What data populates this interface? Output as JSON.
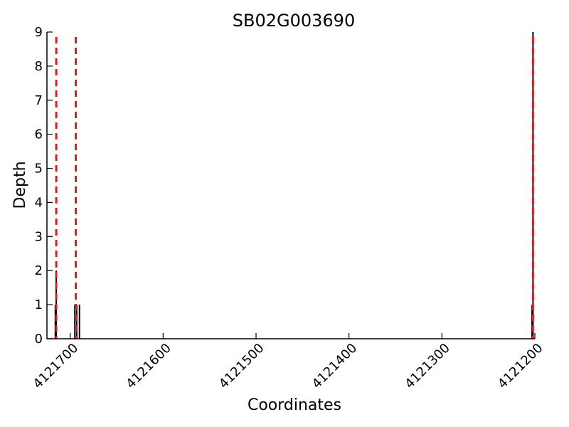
{
  "chart_data": {
    "type": "bar",
    "title": "SB02G003690",
    "xlabel": "Coordinates",
    "ylabel": "Depth",
    "xlim": [
      4121725,
      4121200
    ],
    "ylim": [
      0,
      9
    ],
    "x_ticks": [
      4121700,
      4121600,
      4121500,
      4121400,
      4121300,
      4121200
    ],
    "y_ticks": [
      0,
      1,
      2,
      3,
      4,
      5,
      6,
      7,
      8,
      9
    ],
    "bar_width": 1.5,
    "bars": [
      {
        "x": 4121716,
        "y": 1
      },
      {
        "x": 4121715,
        "y": 2
      },
      {
        "x": 4121695,
        "y": 1
      },
      {
        "x": 4121693,
        "y": 1
      },
      {
        "x": 4121690,
        "y": 1
      },
      {
        "x": 4121203,
        "y": 1
      },
      {
        "x": 4121202,
        "y": 9
      }
    ],
    "markers": [
      4121715,
      4121694,
      4121202
    ],
    "marker_color": "#e31a1c",
    "bar_color": "#000000",
    "grid": false,
    "legend": "none"
  }
}
